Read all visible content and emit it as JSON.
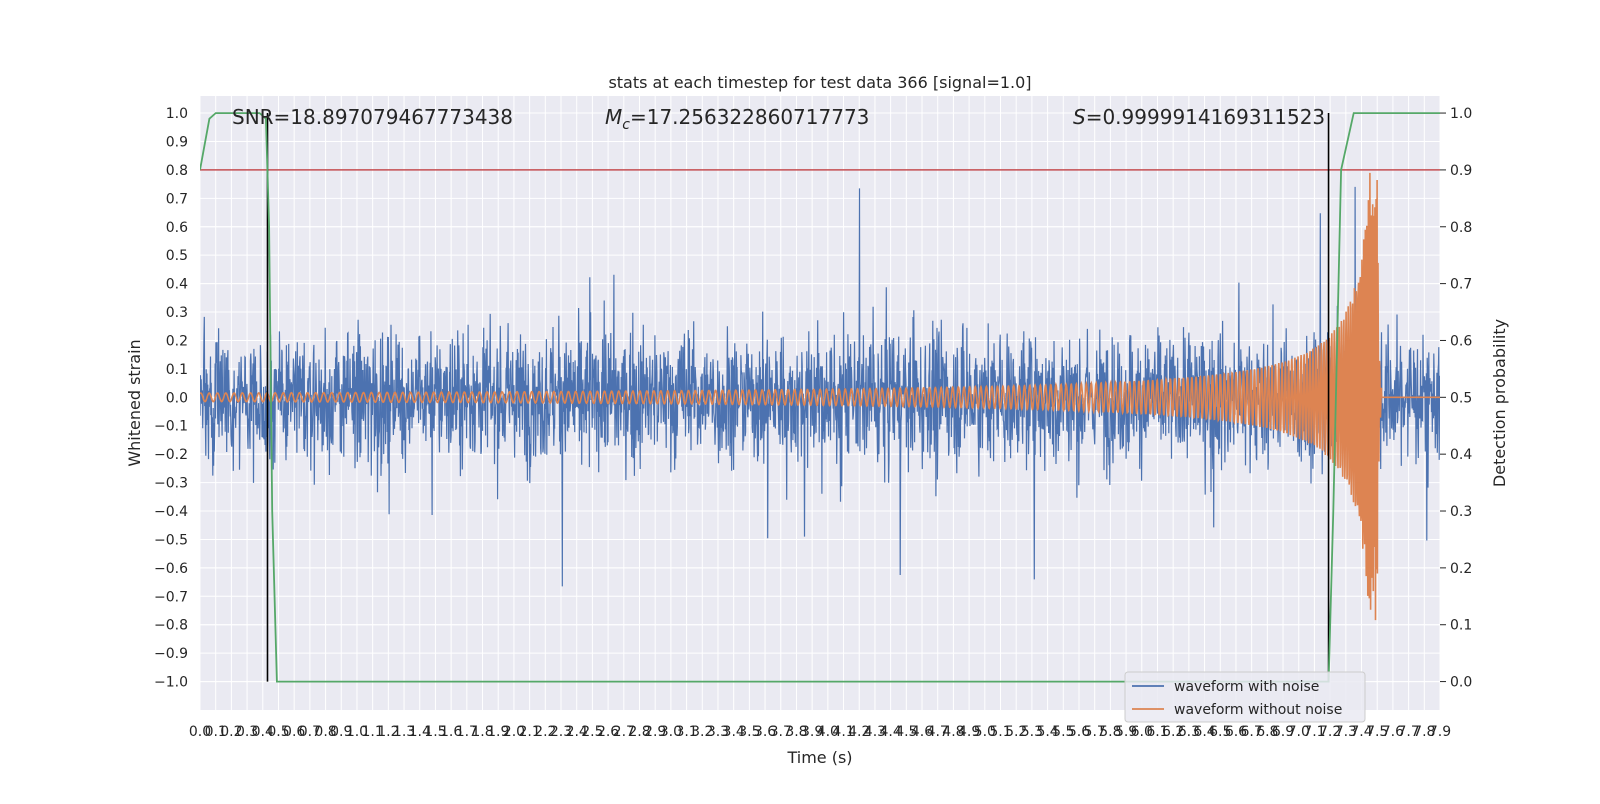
{
  "chart_data": {
    "type": "line",
    "title": "stats at each timestep for test data 366 [signal=1.0]",
    "xlabel": "Time (s)",
    "ylabel_left": "Whitened strain",
    "ylabel_right": "Detection probability",
    "xlim": [
      0.0,
      7.9
    ],
    "ylim_left": [
      -1.1,
      1.06
    ],
    "ylim_right": [
      -0.05,
      1.03
    ],
    "x_ticks": [
      0.0,
      0.1,
      0.2,
      0.3,
      0.4,
      0.5,
      0.6,
      0.7,
      0.8,
      0.9,
      1.0,
      1.1,
      1.2,
      1.3,
      1.4,
      1.5,
      1.6,
      1.7,
      1.8,
      1.9,
      2.0,
      2.1,
      2.2,
      2.3,
      2.4,
      2.5,
      2.6,
      2.7,
      2.8,
      2.9,
      3.0,
      3.1,
      3.2,
      3.3,
      3.4,
      3.5,
      3.6,
      3.7,
      3.8,
      3.9,
      4.0,
      4.1,
      4.2,
      4.3,
      4.4,
      4.5,
      4.6,
      4.7,
      4.8,
      4.9,
      5.0,
      5.1,
      5.2,
      5.3,
      5.4,
      5.5,
      5.6,
      5.7,
      5.8,
      5.9,
      6.0,
      6.1,
      6.2,
      6.3,
      6.4,
      6.5,
      6.6,
      6.7,
      6.8,
      6.9,
      7.0,
      7.1,
      7.2,
      7.3,
      7.4,
      7.5,
      7.6,
      7.7,
      7.8,
      7.9
    ],
    "x_tick_labels": [
      "0.0",
      "0.1",
      "0.2",
      "0.3",
      "0.4",
      "0.5",
      "0.6",
      "0.7",
      "0.8",
      "0.9",
      "1.0",
      "1.1",
      "1.2",
      "1.3",
      "1.4",
      "1.5",
      "1.6",
      "1.7",
      "1.8",
      "1.9",
      "2.0",
      "2.1",
      "2.2",
      "2.3",
      "2.4",
      "2.5",
      "2.6",
      "2.7",
      "2.8",
      "2.9",
      "3.0",
      "3.1",
      "3.2",
      "3.3",
      "3.4",
      "3.5",
      "3.6",
      "3.7",
      "3.8",
      "3.9",
      "4.0",
      "4.1",
      "4.2",
      "4.3",
      "4.4",
      "4.5",
      "4.6",
      "4.7",
      "4.8",
      "4.9",
      "5.0",
      "5.1",
      "5.2",
      "5.3",
      "5.4",
      "5.5",
      "5.6",
      "5.7",
      "5.8",
      "5.9",
      "6.0",
      "6.1",
      "6.2",
      "6.3",
      "6.4",
      "6.5",
      "6.6",
      "6.7",
      "6.8",
      "6.9",
      "7.0",
      "7.1",
      "7.2",
      "7.3",
      "7.4",
      "7.5",
      "7.6",
      "7.7",
      "7.8",
      "7.9"
    ],
    "y_left_ticks": [
      -1.0,
      -0.9,
      -0.8,
      -0.7,
      -0.6,
      -0.5,
      -0.4,
      -0.3,
      -0.2,
      -0.1,
      0.0,
      0.1,
      0.2,
      0.3,
      0.4,
      0.5,
      0.6,
      0.7,
      0.8,
      0.9,
      1.0
    ],
    "y_left_tick_labels": [
      "−1.0",
      "−0.9",
      "−0.8",
      "−0.7",
      "−0.6",
      "−0.5",
      "−0.4",
      "−0.3",
      "−0.2",
      "−0.1",
      "0.0",
      "0.1",
      "0.2",
      "0.3",
      "0.4",
      "0.5",
      "0.6",
      "0.7",
      "0.8",
      "0.9",
      "1.0"
    ],
    "y_right_ticks": [
      0.0,
      0.1,
      0.2,
      0.3,
      0.4,
      0.5,
      0.6,
      0.7,
      0.8,
      0.9,
      1.0
    ],
    "y_right_tick_labels": [
      "0.0",
      "0.1",
      "0.2",
      "0.3",
      "0.4",
      "0.5",
      "0.6",
      "0.7",
      "0.8",
      "0.9",
      "1.0"
    ],
    "annotations": {
      "snr": "SNR=18.897079467773438",
      "mc_symbol": "M",
      "mc_subscript": "c",
      "mc_value": "=17.256322860717773",
      "s_symbol": "S",
      "s_value": "=0.9999914169311523"
    },
    "legend": {
      "placement": "lower-right",
      "entries": [
        "waveform with noise",
        "waveform without noise"
      ]
    },
    "threshold_line": {
      "axis": "right",
      "y": 0.9,
      "color": "#c44e52"
    },
    "vertical_markers": {
      "x": [
        0.43,
        7.19
      ],
      "y_range_left": [
        -1.0,
        1.0
      ],
      "color": "#000000"
    },
    "noise_series": {
      "name": "waveform with noise",
      "color": "#4c72b0",
      "axis": "left",
      "description_values": {
        "typical_envelope": [
          -0.45,
          0.45
        ],
        "peak_max": 0.99,
        "peak_min": -1.0
      }
    },
    "signal_series": {
      "name": "waveform without noise",
      "color": "#dd8452",
      "axis": "left",
      "start_x": 0.0,
      "merger_x": 7.5,
      "initial_amplitude": 0.015,
      "peak_amplitude": 0.79,
      "min_amplitude": -0.87
    },
    "probability_series": {
      "axis": "right",
      "color": "#55a868",
      "x": [
        0.0,
        0.06,
        0.1,
        0.15,
        0.25,
        0.38,
        0.42,
        0.44,
        0.46,
        0.49,
        0.55,
        7.19,
        7.22,
        7.27,
        7.35,
        7.65,
        7.9
      ],
      "y": [
        0.9,
        0.99,
        1.0,
        1.0,
        1.0,
        1.0,
        0.99,
        0.8,
        0.3,
        0.0,
        0.0,
        0.0,
        0.3,
        0.9,
        1.0,
        1.0,
        1.0
      ]
    },
    "grid": true,
    "colors": {
      "background": "#eaeaf2",
      "grid": "#ffffff"
    }
  }
}
